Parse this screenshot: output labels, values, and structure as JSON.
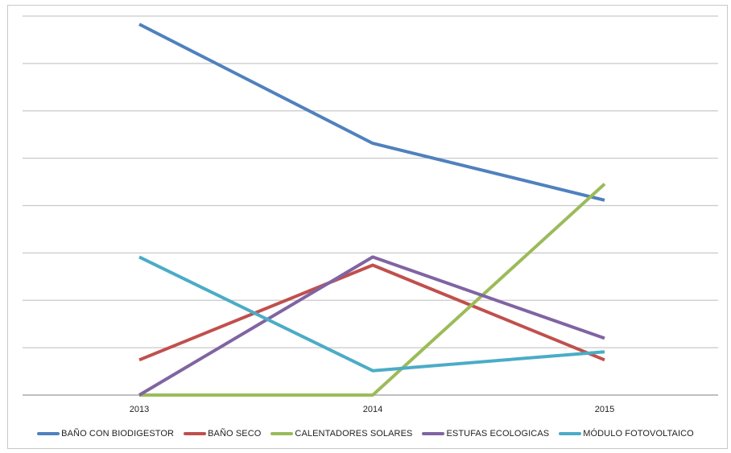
{
  "chart_data": {
    "type": "line",
    "title": "",
    "xlabel": "",
    "ylabel": "",
    "categories": [
      "2013",
      "2014",
      "2015"
    ],
    "ylim": [
      0,
      7
    ],
    "y_gridlines": 8,
    "grid": true,
    "legend_position": "bottom",
    "series": [
      {
        "name": "BAÑO CON BIODIGESTOR",
        "color": "#4f81bd",
        "values": [
          6.85,
          4.65,
          3.6
        ]
      },
      {
        "name": "BAÑO SECO",
        "color": "#c0504d",
        "values": [
          0.65,
          2.4,
          0.65
        ]
      },
      {
        "name": "CALENTADORES SOLARES",
        "color": "#9bbb59",
        "values": [
          0,
          0,
          3.9
        ]
      },
      {
        "name": "ESTUFAS ECOLOGICAS",
        "color": "#8064a2",
        "values": [
          0,
          2.55,
          1.05
        ]
      },
      {
        "name": "MÓDULO FOTOVOLTAICO",
        "color": "#4bacc6",
        "values": [
          2.55,
          0.45,
          0.8
        ]
      }
    ]
  }
}
